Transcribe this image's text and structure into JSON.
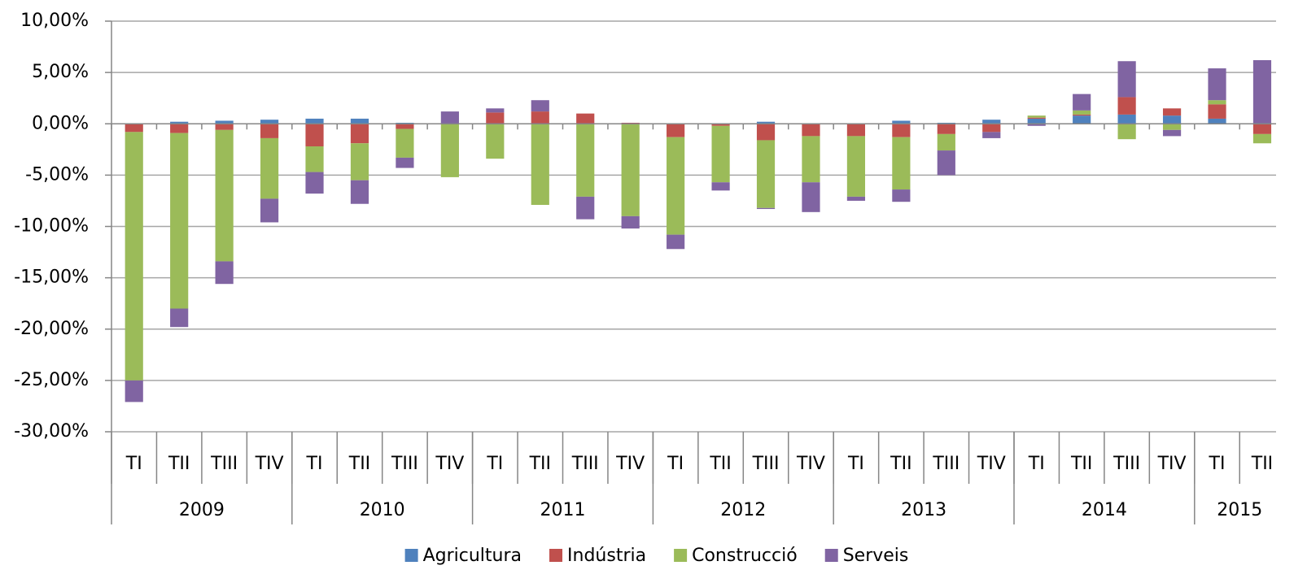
{
  "chart_data": {
    "type": "stacked_bar",
    "categories": [
      "TI",
      "TII",
      "TIII",
      "TIV",
      "TI",
      "TII",
      "TIII",
      "TIV",
      "TI",
      "TII",
      "TIII",
      "TIV",
      "TI",
      "TII",
      "TIII",
      "TIV",
      "TI",
      "TII",
      "TIII",
      "TIV",
      "TI",
      "TII",
      "TIII",
      "TIV",
      "TI",
      "TII"
    ],
    "groups": [
      {
        "label": "2009",
        "span": 4
      },
      {
        "label": "2010",
        "span": 4
      },
      {
        "label": "2011",
        "span": 4
      },
      {
        "label": "2012",
        "span": 4
      },
      {
        "label": "2013",
        "span": 4
      },
      {
        "label": "2014",
        "span": 4
      },
      {
        "label": "2015",
        "span": 2
      }
    ],
    "series": [
      {
        "name": "Agricultura",
        "color": "#4f81bd",
        "values": [
          0,
          0.2,
          0.3,
          0.4,
          0.5,
          0.5,
          0.1,
          0,
          0,
          0,
          0,
          0,
          0,
          0,
          0.2,
          0,
          0,
          0.3,
          0.1,
          0.4,
          0.5,
          0.8,
          0.9,
          0.8,
          0.5,
          0
        ]
      },
      {
        "name": "Indústria",
        "color": "#c0504d",
        "values": [
          -0.8,
          -0.9,
          -0.6,
          -1.4,
          -2.2,
          -1.9,
          -0.5,
          0,
          1.1,
          1.2,
          1.0,
          0.1,
          -1.3,
          -0.2,
          -1.6,
          -1.2,
          -1.2,
          -1.3,
          -1.0,
          -0.8,
          0.1,
          0.1,
          1.7,
          0.7,
          1.4,
          -1.0
        ]
      },
      {
        "name": "Construcció",
        "color": "#9bbb59",
        "values": [
          -24.2,
          -17.1,
          -12.8,
          -5.9,
          -2.5,
          -3.6,
          -2.8,
          -5.2,
          -3.4,
          -7.9,
          -7.1,
          -9.0,
          -9.5,
          -5.5,
          -6.6,
          -4.5,
          -5.9,
          -5.1,
          -1.6,
          0,
          0.2,
          0.4,
          -1.5,
          -0.6,
          0.4,
          -0.9
        ]
      },
      {
        "name": "Serveis",
        "color": "#8064a2",
        "values": [
          -2.1,
          -1.8,
          -2.2,
          -2.3,
          -2.1,
          -2.3,
          -1.0,
          1.2,
          0.4,
          1.1,
          -2.2,
          -1.2,
          -1.4,
          -0.8,
          -0.1,
          -2.9,
          -0.4,
          -1.2,
          -2.4,
          -0.6,
          -0.2,
          1.6,
          3.5,
          -0.6,
          3.1,
          6.2
        ]
      }
    ],
    "ylim": [
      -30,
      10
    ],
    "yticks": [
      {
        "value": -30,
        "label": "-30,00%"
      },
      {
        "value": -25,
        "label": "-25,00%"
      },
      {
        "value": -20,
        "label": "-20,00%"
      },
      {
        "value": -15,
        "label": "-15,00%"
      },
      {
        "value": -10,
        "label": "-10,00%"
      },
      {
        "value": -5,
        "label": "-5,00%"
      },
      {
        "value": 0,
        "label": "0,00%"
      },
      {
        "value": 5,
        "label": "5,00%"
      },
      {
        "value": 10,
        "label": "10,00%"
      }
    ],
    "grid": true,
    "legend": "bottom"
  }
}
